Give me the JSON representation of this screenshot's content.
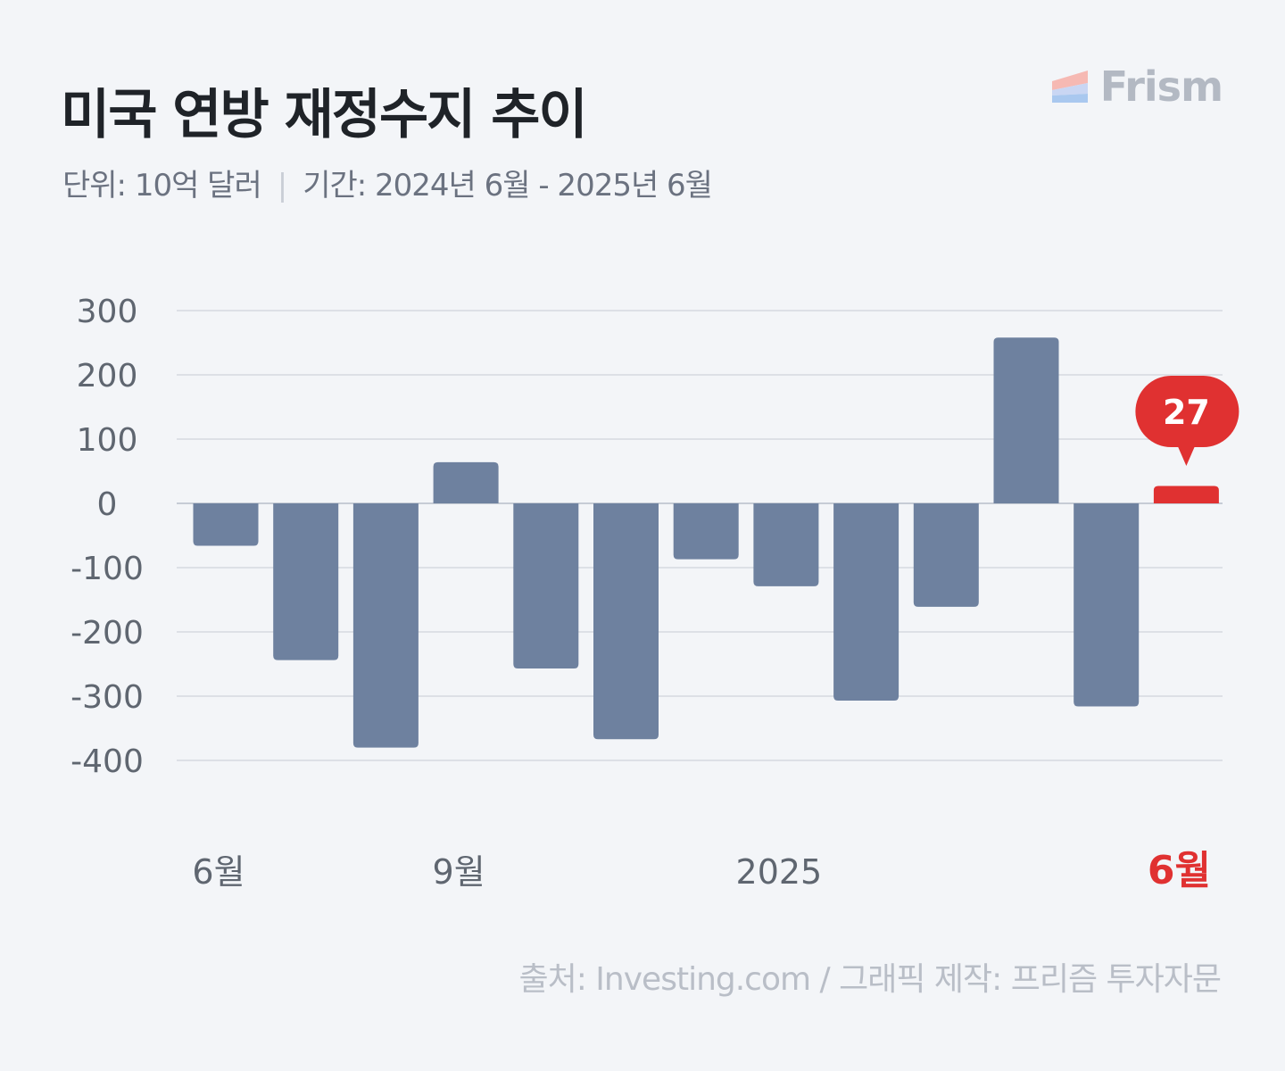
{
  "header": {
    "title": "미국 연방 재정수지 추이",
    "unit_label": "단위: 10억 달러",
    "period_label": "기간: 2024년 6월 - 2025년 6월",
    "separator": "|"
  },
  "logo": {
    "text": "Frism",
    "icon": "frism-logo-icon"
  },
  "source": "출처: Investing.com / 그래픽 제작: 프리즘 투자자문",
  "colors": {
    "bar": "#6e819f",
    "highlight": "#e03131",
    "grid": "#d6dae0",
    "tick": "#5f6670"
  },
  "chart_data": {
    "type": "bar",
    "title": "미국 연방 재정수지 추이",
    "ylim": [
      -400,
      300
    ],
    "yticks": [
      "300",
      "200",
      "100",
      "0",
      "-100",
      "-200",
      "-300",
      "-400"
    ],
    "ytick_values": [
      300,
      200,
      100,
      0,
      -100,
      -200,
      -300,
      -400
    ],
    "categories": [
      "2024-06",
      "2024-07",
      "2024-08",
      "2024-09",
      "2024-10",
      "2024-11",
      "2024-12",
      "2025-01",
      "2025-02",
      "2025-03",
      "2025-04",
      "2025-05",
      "2025-06"
    ],
    "values": [
      -66,
      -244,
      -380,
      64,
      -257,
      -367,
      -87,
      -129,
      -307,
      -161,
      258,
      -316,
      27
    ],
    "xtick_labels": [
      {
        "index": 0,
        "label": "6월"
      },
      {
        "index": 3,
        "label": "9월"
      },
      {
        "index": 7,
        "label": "2025"
      },
      {
        "index": 12,
        "label": "6월",
        "highlight": true
      }
    ],
    "highlight_index": 12,
    "callout_label": "27",
    "grid": true
  }
}
